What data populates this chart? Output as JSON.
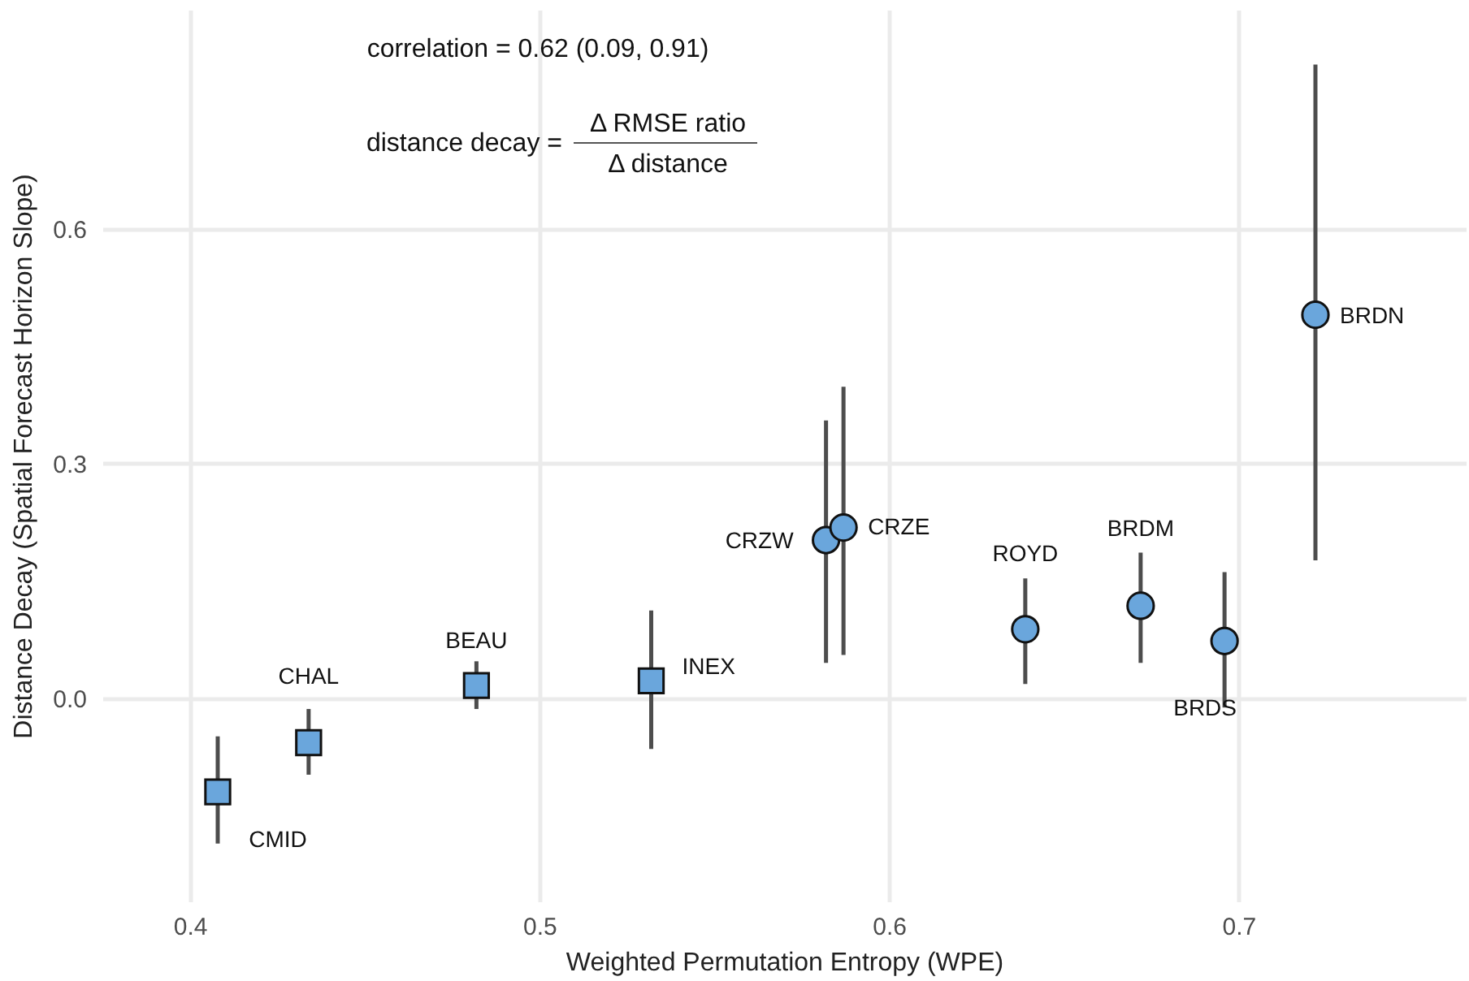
{
  "chart_data": {
    "type": "scatter",
    "xlabel": "Weighted Permutation Entropy (WPE)",
    "ylabel": "Distance Decay (Spatial Forecast Horizon Slope)",
    "xlim": [
      0.375,
      0.765
    ],
    "ylim": [
      -0.26,
      0.88
    ],
    "xticks": [
      0.4,
      0.5,
      0.6,
      0.7
    ],
    "yticks": [
      {
        "value": 0,
        "label": "0.0"
      },
      0.3,
      0.6
    ],
    "grid": true,
    "series": [
      {
        "color": "#6aa6dc",
        "marker": "square",
        "x": [
          0.408,
          0.434,
          0.482,
          0.532
        ],
        "values": [
          -0.12,
          -0.057,
          0.016,
          0.022
        ],
        "errors": [
          [
            -0.186,
            -0.049
          ],
          [
            -0.098,
            -0.014
          ],
          [
            -0.014,
            0.047
          ],
          [
            -0.065,
            0.112
          ]
        ]
      },
      {
        "color": "#6aa6dc",
        "marker": "circle",
        "x": [
          0.582,
          0.587,
          0.639,
          0.672,
          0.696,
          0.722
        ],
        "values": [
          0.202,
          0.218,
          0.088,
          0.118,
          0.073,
          0.49
        ],
        "errors": [
          [
            0.045,
            0.355
          ],
          [
            0.055,
            0.398
          ],
          [
            0.018,
            0.153
          ],
          [
            0.045,
            0.186
          ],
          [
            -0.012,
            0.161
          ],
          [
            0.176,
            0.81
          ]
        ]
      }
    ],
    "annotations": [
      "correlation = 0.62 (0.09, 0.91)",
      "distance decay =",
      "Δ RMSE ratio",
      "Δ distance",
      {
        "text": "CMID",
        "x": 0.408,
        "y": -0.12
      },
      {
        "text": "CHAL",
        "x": 0.434,
        "y": -0.057
      },
      {
        "text": "BEAU",
        "x": 0.482,
        "y": 0.016
      },
      {
        "text": "INEX",
        "x": 0.532,
        "y": 0.022
      },
      {
        "text": "CRZW",
        "x": 0.582,
        "y": 0.202
      },
      {
        "text": "CRZE",
        "x": 0.587,
        "y": 0.218
      },
      {
        "text": "ROYD",
        "x": 0.639,
        "y": 0.088
      },
      {
        "text": "BRDM",
        "x": 0.672,
        "y": 0.118
      },
      {
        "text": "BRDS",
        "x": 0.696,
        "y": 0.073
      },
      {
        "text": "BRDN",
        "x": 0.722,
        "y": 0.49
      }
    ]
  }
}
